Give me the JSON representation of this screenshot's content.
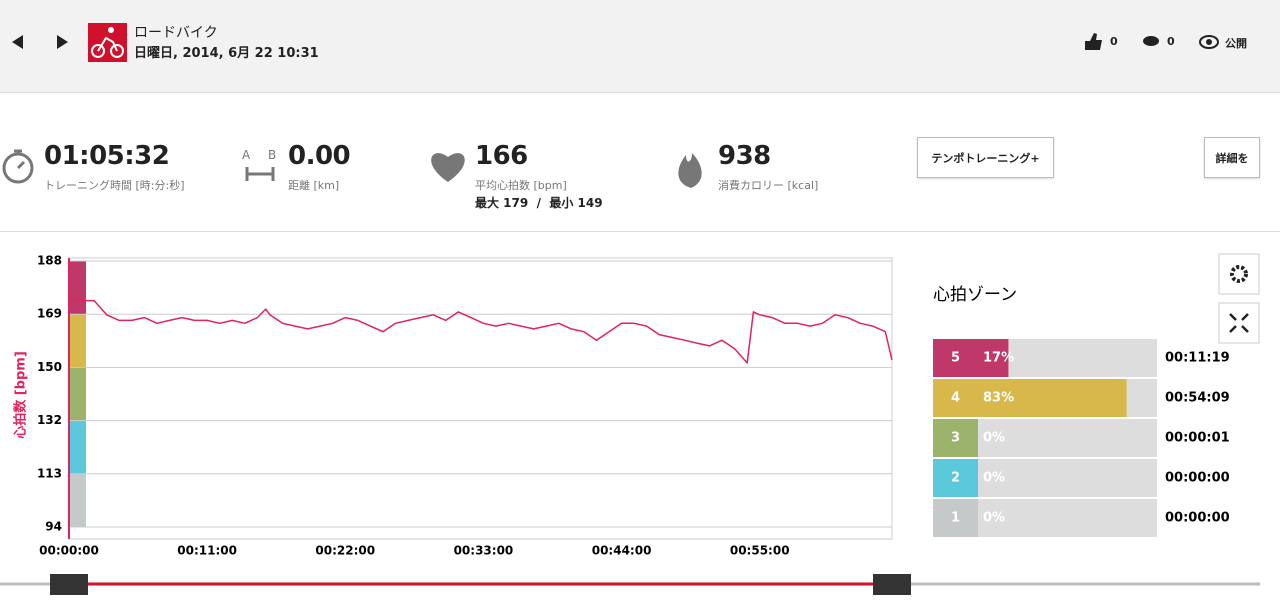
{
  "header": {
    "activity": "ロードバイク",
    "datetime": "日曜日, 2014, 6月 22 10:31",
    "likes": "0",
    "comments": "0",
    "visibility": "公開"
  },
  "stats": {
    "duration": "01:05:32",
    "duration_label": "トレーニング時間 [時:分:秒]",
    "distance_icon_labels": [
      "A",
      "B"
    ],
    "distance": "0.00",
    "distance_label": "距離 [km]",
    "avg_hr": "166",
    "avg_hr_label": "平均心拍数 [bpm]",
    "max_min_hr": "最大 179  /  最小 149",
    "calories": "938",
    "calories_label": "消費カロリー [kcal]",
    "tempo_button": "テンポトレーニング+",
    "details_button": "詳細を"
  },
  "chart_data": {
    "type": "line",
    "y_label": "心拍数 [bpm]",
    "x": [
      0,
      60,
      120,
      180,
      240,
      300,
      360,
      420,
      480,
      540,
      600,
      660,
      720,
      780,
      840,
      900,
      940,
      960,
      1020,
      1080,
      1140,
      1200,
      1260,
      1320,
      1380,
      1440,
      1500,
      1560,
      1620,
      1680,
      1740,
      1800,
      1860,
      1920,
      1980,
      2040,
      2100,
      2160,
      2220,
      2280,
      2340,
      2400,
      2460,
      2520,
      2580,
      2640,
      2700,
      2760,
      2820,
      2880,
      2940,
      3000,
      3060,
      3120,
      3180,
      3240,
      3270,
      3300,
      3360,
      3420,
      3480,
      3540,
      3600,
      3660,
      3720,
      3780,
      3840,
      3900,
      3932
    ],
    "series": [
      {
        "color": "#e0245e",
        "values": [
          175,
          174,
          174,
          169,
          167,
          167,
          168,
          166,
          167,
          168,
          167,
          167,
          166,
          167,
          166,
          168,
          171,
          169,
          166,
          165,
          164,
          165,
          166,
          168,
          167,
          165,
          163,
          166,
          167,
          168,
          169,
          167,
          170,
          168,
          166,
          165,
          166,
          165,
          164,
          165,
          166,
          164,
          163,
          160,
          163,
          166,
          166,
          165,
          162,
          161,
          160,
          159,
          158,
          160,
          157,
          152,
          170,
          169,
          168,
          166,
          166,
          165,
          166,
          169,
          168,
          166,
          165,
          163,
          153
        ]
      }
    ],
    "xlim": [
      0,
      3932
    ],
    "xticks": [
      {
        "value": 0,
        "label": "00:00:00"
      },
      {
        "value": 660,
        "label": "00:11:00"
      },
      {
        "value": 1320,
        "label": "00:22:00"
      },
      {
        "value": 1980,
        "label": "00:33:00"
      },
      {
        "value": 2640,
        "label": "00:44:00"
      },
      {
        "value": 3300,
        "label": "00:55:00"
      }
    ],
    "ylim": [
      94,
      188
    ],
    "yticks": [
      94,
      {
        "value": 112.8,
        "label": "113"
      },
      {
        "value": 131.6,
        "label": "132"
      },
      {
        "value": 150.4,
        "label": "150"
      },
      {
        "value": 169.2,
        "label": "169"
      },
      188
    ],
    "grid": true
  },
  "zones": {
    "title": "心拍ゾーン",
    "categories": [
      "5",
      "4",
      "3",
      "2",
      "1"
    ],
    "values": [
      17,
      83,
      0,
      0,
      0
    ],
    "value_labels": [
      "17%",
      "83%",
      "0%",
      "0%",
      "0%"
    ],
    "times": [
      "00:11:19",
      "00:54:09",
      "00:00:01",
      "00:00:00",
      "00:00:00"
    ],
    "colors": [
      "#c0386a",
      "#d8b84a",
      "#9bb36a",
      "#5cc8dc",
      "#c5c9c9"
    ]
  }
}
